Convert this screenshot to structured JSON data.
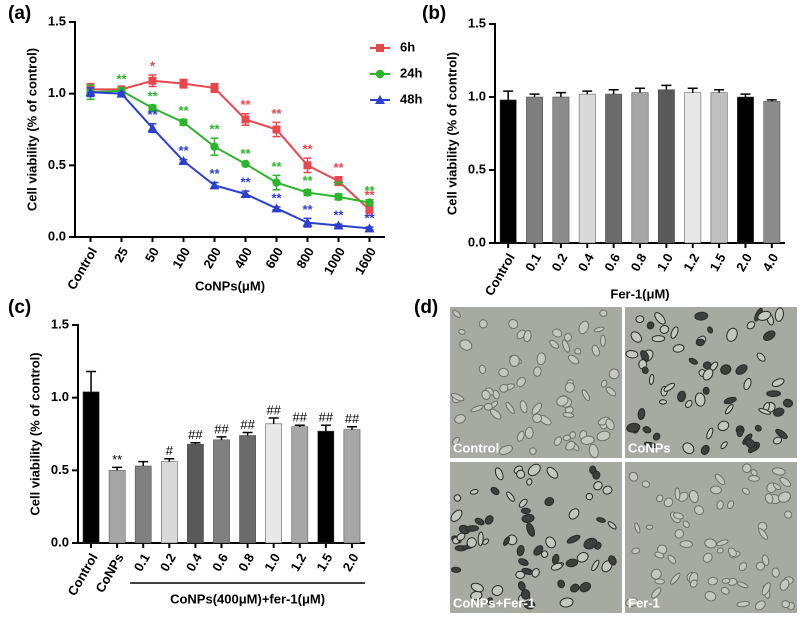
{
  "chart_data": [
    {
      "type": "line",
      "panel_label": "(a)",
      "ylabel": "Cell viability (% of control)",
      "xlabel": "CoNPs(μM)",
      "categories": [
        "Control",
        "25",
        "50",
        "100",
        "200",
        "400",
        "600",
        "800",
        "1000",
        "1600"
      ],
      "ylim": [
        0,
        1.5
      ],
      "yticks": [
        {
          "value": 0,
          "label": "0.0"
        },
        {
          "value": 0.5,
          "label": "0.5"
        },
        {
          "value": 1,
          "label": "1.0"
        },
        {
          "value": 1.5,
          "label": "1.5"
        }
      ],
      "legend": "right",
      "series": [
        {
          "name": "6h",
          "color": "#e8474f",
          "marker": "square",
          "values": [
            1.03,
            1.03,
            1.09,
            1.07,
            1.04,
            0.82,
            0.75,
            0.5,
            0.39,
            0.19
          ],
          "errors": [
            0.04,
            0.02,
            0.04,
            0.03,
            0.03,
            0.04,
            0.05,
            0.05,
            0.03,
            0.04
          ],
          "annotations": [
            null,
            null,
            "*",
            null,
            null,
            "**",
            "**",
            "**",
            "**",
            "**"
          ]
        },
        {
          "name": "24h",
          "color": "#2db42d",
          "marker": "circle",
          "values": [
            1.01,
            1.02,
            0.9,
            0.8,
            0.63,
            0.51,
            0.38,
            0.31,
            0.28,
            0.24
          ],
          "errors": [
            0.05,
            0.02,
            0.02,
            0.02,
            0.06,
            0.01,
            0.05,
            0.02,
            0.02,
            0.02
          ],
          "annotations": [
            null,
            "**",
            "**",
            "**",
            "**",
            "**",
            "**",
            "**",
            "**",
            "**"
          ]
        },
        {
          "name": "48h",
          "color": "#2c3fcf",
          "marker": "triangle",
          "values": [
            1.01,
            1.0,
            0.76,
            0.53,
            0.36,
            0.3,
            0.2,
            0.1,
            0.08,
            0.06
          ],
          "errors": [
            0.03,
            0.01,
            0.03,
            0.01,
            0.02,
            0.02,
            0.01,
            0.03,
            0.01,
            0.01
          ],
          "annotations": [
            null,
            null,
            "**",
            "**",
            "**",
            "**",
            "**",
            "**",
            "**",
            "**"
          ]
        }
      ]
    },
    {
      "type": "bar",
      "panel_label": "(b)",
      "ylabel": "Cell viability (% of control)",
      "xlabel": "Fer-1(μM)",
      "categories": [
        "Control",
        "0.1",
        "0.2",
        "0.4",
        "0.6",
        "0.8",
        "1.0",
        "1.2",
        "1.5",
        "2.0",
        "4.0"
      ],
      "ylim": [
        0,
        1.5
      ],
      "yticks": [
        {
          "value": 0,
          "label": "0.0"
        },
        {
          "value": 0.5,
          "label": "0.5"
        },
        {
          "value": 1,
          "label": "1.0"
        },
        {
          "value": 1.5,
          "label": "1.5"
        }
      ],
      "values": [
        0.98,
        1.0,
        1.0,
        1.02,
        1.02,
        1.03,
        1.05,
        1.03,
        1.03,
        1.0,
        0.97
      ],
      "errors": [
        0.06,
        0.02,
        0.03,
        0.02,
        0.03,
        0.03,
        0.03,
        0.03,
        0.02,
        0.02,
        0.01
      ],
      "colors": [
        "#000000",
        "#7f7f7f",
        "#8c8c8c",
        "#d9d9d9",
        "#6b6b6b",
        "#a6a6a6",
        "#595959",
        "#e8e8e8",
        "#bfbfbf",
        "#000000",
        "#8c8c8c"
      ]
    },
    {
      "type": "bar",
      "panel_label": "(c)",
      "ylabel": "Cell viability (% of control)",
      "xlabel": "CoNPs(400μM)+fer-1(μM)",
      "categories": [
        "Control",
        "CoNPs",
        "0.1",
        "0.2",
        "0.4",
        "0.6",
        "0.8",
        "1.0",
        "1.2",
        "1.5",
        "2.0"
      ],
      "ylim": [
        0,
        1.5
      ],
      "yticks": [
        {
          "value": 0,
          "label": "0.0"
        },
        {
          "value": 0.5,
          "label": "0.5"
        },
        {
          "value": 1,
          "label": "1.0"
        },
        {
          "value": 1.5,
          "label": "1.5"
        }
      ],
      "values": [
        1.04,
        0.5,
        0.53,
        0.56,
        0.68,
        0.71,
        0.74,
        0.82,
        0.8,
        0.77,
        0.78
      ],
      "errors": [
        0.14,
        0.02,
        0.03,
        0.02,
        0.01,
        0.02,
        0.02,
        0.04,
        0.01,
        0.04,
        0.02
      ],
      "annotations": [
        null,
        "**",
        null,
        "#",
        "##",
        "##",
        "##",
        "##",
        "##",
        "##",
        "##"
      ],
      "colors": [
        "#000000",
        "#a6a6a6",
        "#808080",
        "#d9d9d9",
        "#595959",
        "#808080",
        "#6b6b6b",
        "#e8e8e8",
        "#a6a6a6",
        "#000000",
        "#a6a6a6"
      ]
    }
  ],
  "panel_d": {
    "panel_label": "(d)",
    "images": [
      {
        "label": "Control"
      },
      {
        "label": "CoNPs"
      },
      {
        "label": "CoNPs+Fer-1"
      },
      {
        "label": "Fer-1"
      }
    ]
  }
}
